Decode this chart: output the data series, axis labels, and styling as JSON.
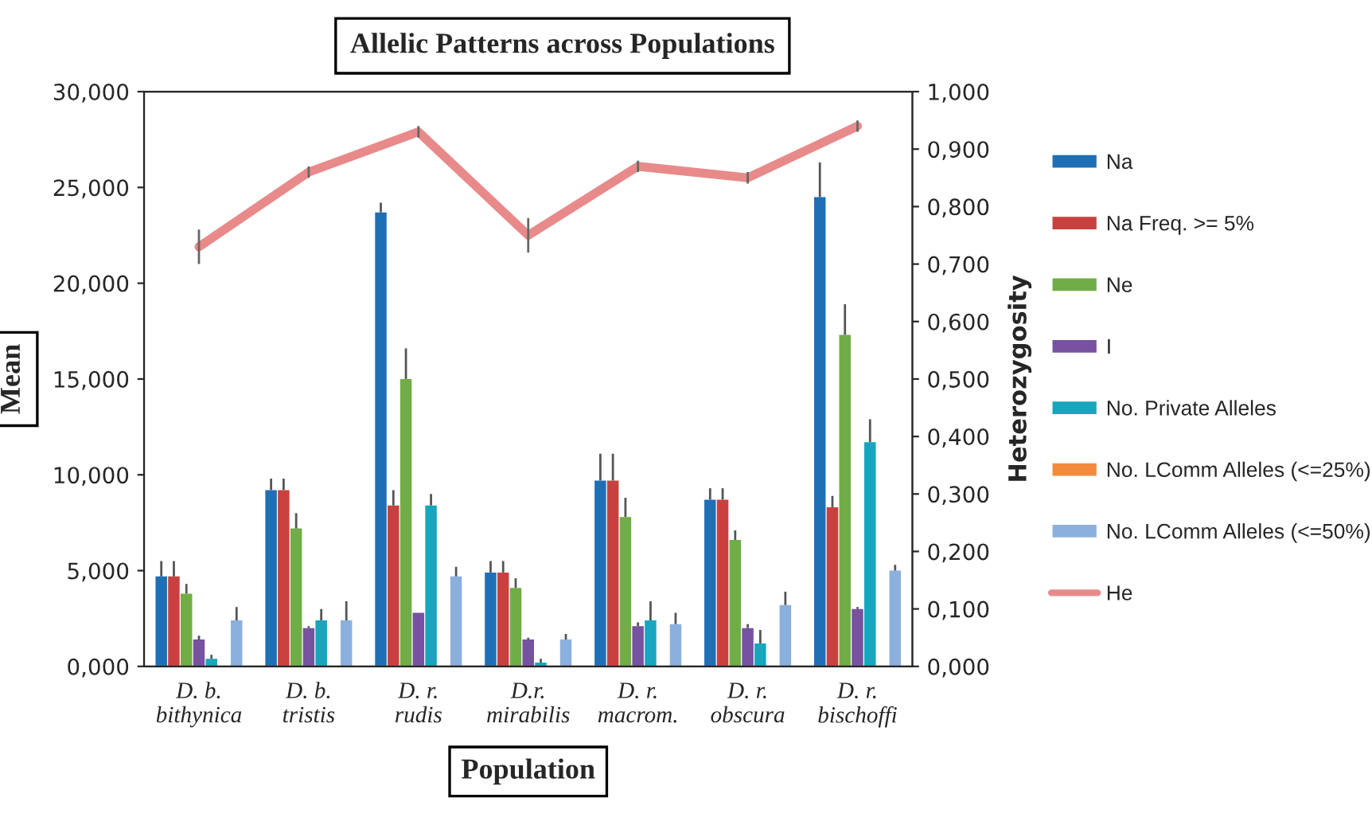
{
  "chart_data": {
    "type": "bar",
    "title": "Allelic Patterns across Populations",
    "xlabel": "Population",
    "ylabel": "Mean",
    "y2label": "Heterozygosity",
    "categories": [
      "D. b.\nbithynica",
      "D. b.\ntristis",
      "D. r.\nrudis",
      "D.r.\nmirabilis",
      "D. r.\nmacrom.",
      "D. r.\nobscura",
      "D. r.\nbischoffi"
    ],
    "series": [
      {
        "name": "Na",
        "color": "#1f6fb4",
        "values": [
          4.7,
          9.2,
          23.7,
          4.9,
          9.7,
          8.7,
          24.5
        ],
        "errors": [
          0.8,
          0.6,
          0.5,
          0.6,
          1.4,
          0.6,
          1.8
        ]
      },
      {
        "name": "Na Freq. >= 5%",
        "color": "#c9413f",
        "values": [
          4.7,
          9.2,
          8.4,
          4.9,
          9.7,
          8.7,
          8.3
        ],
        "errors": [
          0.8,
          0.6,
          0.8,
          0.6,
          1.4,
          0.6,
          0.6
        ]
      },
      {
        "name": "Ne",
        "color": "#70ad47",
        "values": [
          3.8,
          7.2,
          15.0,
          4.1,
          7.8,
          6.6,
          17.3
        ],
        "errors": [
          0.5,
          0.8,
          1.6,
          0.5,
          1.0,
          0.5,
          1.6
        ]
      },
      {
        "name": "I",
        "color": "#7652a0",
        "values": [
          1.4,
          2.0,
          2.8,
          1.4,
          2.1,
          2.0,
          3.0
        ],
        "errors": [
          0.2,
          0.1,
          null,
          0.1,
          0.2,
          0.2,
          0.1
        ]
      },
      {
        "name": "No. Private Alleles",
        "color": "#17a6bd",
        "values": [
          0.4,
          2.4,
          8.4,
          0.2,
          2.4,
          1.2,
          11.7
        ],
        "errors": [
          0.2,
          0.6,
          0.6,
          0.2,
          1.0,
          0.7,
          1.2
        ]
      },
      {
        "name": "No. LComm Alleles (<=25%)",
        "color": "#f38b3c",
        "values": [
          0,
          0,
          0,
          0,
          0,
          0,
          0
        ]
      },
      {
        "name": "No. LComm Alleles (<=50%)",
        "color": "#8cb0dd",
        "values": [
          2.4,
          2.4,
          4.7,
          1.4,
          2.2,
          3.2,
          5.0
        ],
        "errors": [
          0.7,
          1.0,
          0.5,
          0.3,
          0.6,
          0.7,
          0.3
        ]
      },
      {
        "name": "He",
        "type": "line",
        "axis": "y2",
        "color": "#e88a8a",
        "values": [
          0.73,
          0.86,
          0.93,
          0.75,
          0.87,
          0.85,
          0.94
        ],
        "errors": [
          0.03,
          0.01,
          0.01,
          0.03,
          0.01,
          0.01,
          0.01
        ]
      }
    ],
    "ylim": [
      0,
      30
    ],
    "yticks": [
      {
        "value": 0,
        "label": "0,000"
      },
      {
        "value": 5,
        "label": "5,000"
      },
      {
        "value": 10,
        "label": "10,000"
      },
      {
        "value": 15,
        "label": "15,000"
      },
      {
        "value": 20,
        "label": "20,000"
      },
      {
        "value": 25,
        "label": "25,000"
      },
      {
        "value": 30,
        "label": "30,000"
      }
    ],
    "y2lim": [
      0,
      1
    ],
    "y2ticks": [
      {
        "value": 0,
        "label": "0,000"
      },
      {
        "value": 0.1,
        "label": "0,100"
      },
      {
        "value": 0.2,
        "label": "0,200"
      },
      {
        "value": 0.3,
        "label": "0,300"
      },
      {
        "value": 0.4,
        "label": "0,400"
      },
      {
        "value": 0.5,
        "label": "0,500"
      },
      {
        "value": 0.6,
        "label": "0,600"
      },
      {
        "value": 0.7,
        "label": "0,700"
      },
      {
        "value": 0.8,
        "label": "0,800"
      },
      {
        "value": 0.9,
        "label": "0,900"
      },
      {
        "value": 1,
        "label": "1,000"
      }
    ],
    "legend": "right",
    "grid": false
  }
}
